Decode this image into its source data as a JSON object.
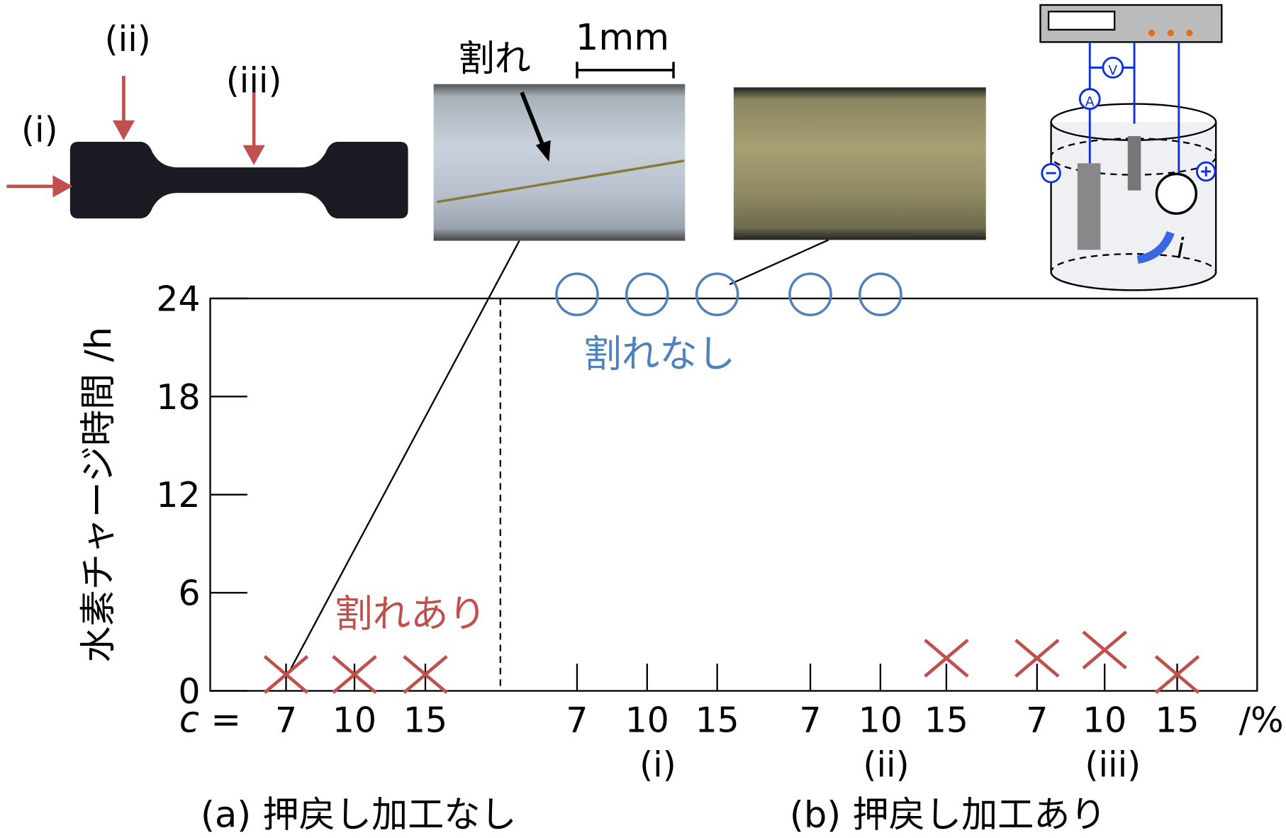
{
  "chart_data": {
    "type": "scatter",
    "y_label": "水素チャージ時間 /h",
    "x_prefix": "c =",
    "x_unit": "/%",
    "categories": [
      "7",
      "10",
      "15",
      "7",
      "10",
      "15",
      "7",
      "10",
      "15",
      "7",
      "10",
      "15"
    ],
    "subgroups": [
      "(i)",
      "(ii)",
      "(iii)"
    ],
    "groups": [
      "(a) 押戻し加工なし",
      "(b) 押戻し加工あり"
    ],
    "series": [
      {
        "name": "割れあり",
        "color": "#c0504d",
        "marker": "x",
        "values": [
          1,
          1,
          1,
          null,
          null,
          null,
          null,
          null,
          2,
          2,
          2.5,
          1
        ]
      },
      {
        "name": "割れなし",
        "color": "#4f81bd",
        "marker": "o",
        "values": [
          null,
          null,
          null,
          24,
          24,
          24,
          24,
          24,
          null,
          null,
          null,
          null
        ]
      }
    ],
    "ylim": [
      0,
      24
    ],
    "yticks": [
      0,
      6,
      12,
      18,
      24
    ],
    "specimen_labels": [
      "(i)",
      "(ii)",
      "(iii)"
    ],
    "photo_crack_label": "割れ",
    "photo_scale_label": "1mm",
    "apparatus_labels": [
      "V",
      "A",
      "i"
    ]
  }
}
